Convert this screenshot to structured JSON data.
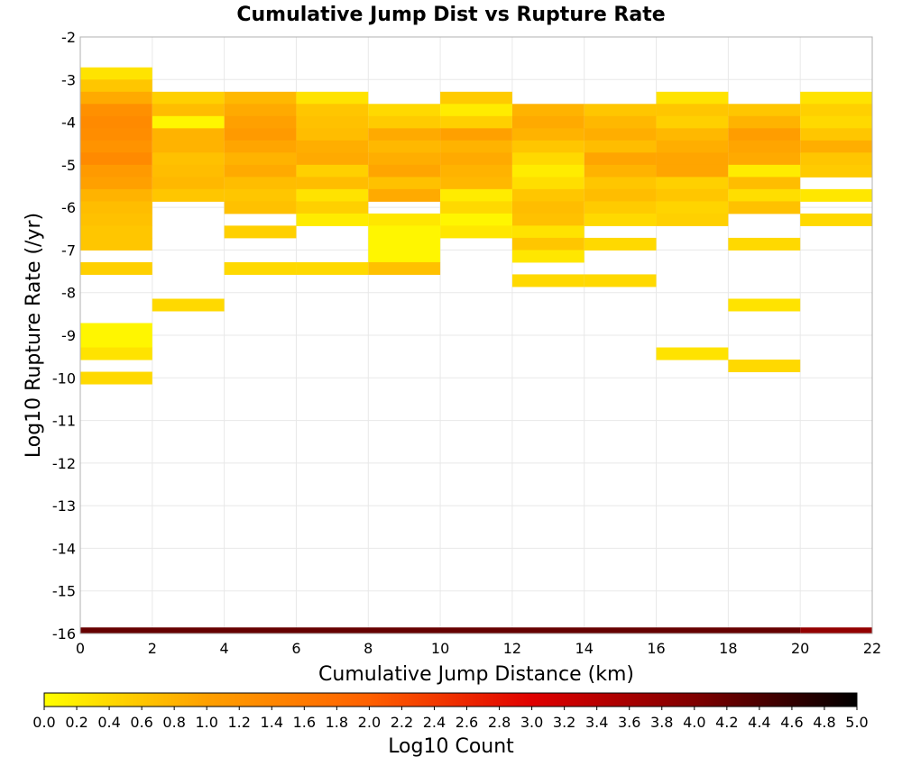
{
  "chart_data": {
    "type": "heatmap",
    "title": "Cumulative Jump Dist vs Rupture Rate",
    "xlabel": "Cumulative Jump Distance (km)",
    "ylabel": "Log10 Rupture Rate (/yr)",
    "xlim": [
      0,
      22
    ],
    "ylim": [
      -16,
      -2
    ],
    "x_ticks": [
      "0",
      "2",
      "4",
      "6",
      "8",
      "10",
      "12",
      "14",
      "16",
      "18",
      "20",
      "22"
    ],
    "y_ticks": [
      "-2",
      "-3",
      "-4",
      "-5",
      "-6",
      "-7",
      "-8",
      "-9",
      "-10",
      "-11",
      "-12",
      "-13",
      "-14",
      "-15",
      "-16"
    ],
    "grid": true,
    "x_bin_width": 2,
    "y_bin_height": 0.2857,
    "colorbar": {
      "label": "Log10 Count",
      "min": 0.0,
      "max": 5.0,
      "ticks": [
        "0.0",
        "0.2",
        "0.4",
        "0.6",
        "0.8",
        "1.0",
        "1.2",
        "1.4",
        "1.6",
        "1.8",
        "2.0",
        "2.2",
        "2.4",
        "2.6",
        "2.8",
        "3.0",
        "3.2",
        "3.4",
        "3.6",
        "3.8",
        "4.0",
        "4.2",
        "4.4",
        "4.6",
        "4.8",
        "5.0"
      ],
      "colors": [
        "#ffff00",
        "#ffa000",
        "#ff6000",
        "#e00000",
        "#800000",
        "#000000"
      ]
    },
    "columns": [
      {
        "x": 0,
        "cells": [
          {
            "y": -2.857,
            "v": 0.3
          },
          {
            "y": -3.143,
            "v": 0.6
          },
          {
            "y": -3.429,
            "v": 0.9
          },
          {
            "y": -3.714,
            "v": 1.25
          },
          {
            "y": -4.0,
            "v": 1.35
          },
          {
            "y": -4.286,
            "v": 1.3
          },
          {
            "y": -4.571,
            "v": 1.2
          },
          {
            "y": -4.857,
            "v": 1.35
          },
          {
            "y": -5.143,
            "v": 1.1
          },
          {
            "y": -5.429,
            "v": 1.0
          },
          {
            "y": -5.714,
            "v": 0.8
          },
          {
            "y": -6.0,
            "v": 0.7
          },
          {
            "y": -6.286,
            "v": 0.65
          },
          {
            "y": -6.571,
            "v": 0.6
          },
          {
            "y": -6.857,
            "v": 0.6
          },
          {
            "y": -7.429,
            "v": 0.5
          },
          {
            "y": -8.857,
            "v": 0.1
          },
          {
            "y": -9.143,
            "v": 0.1
          },
          {
            "y": -9.429,
            "v": 0.3
          },
          {
            "y": -10.0,
            "v": 0.4
          }
        ]
      },
      {
        "x": 2,
        "cells": [
          {
            "y": -3.429,
            "v": 0.5
          },
          {
            "y": -3.714,
            "v": 0.7
          },
          {
            "y": -4.0,
            "v": 0.1
          },
          {
            "y": -4.286,
            "v": 0.8
          },
          {
            "y": -4.571,
            "v": 0.8
          },
          {
            "y": -4.857,
            "v": 0.65
          },
          {
            "y": -5.143,
            "v": 0.7
          },
          {
            "y": -5.429,
            "v": 0.75
          },
          {
            "y": -5.714,
            "v": 0.6
          },
          {
            "y": -8.286,
            "v": 0.4
          }
        ]
      },
      {
        "x": 4,
        "cells": [
          {
            "y": -3.429,
            "v": 0.75
          },
          {
            "y": -3.714,
            "v": 0.9
          },
          {
            "y": -4.0,
            "v": 1.0
          },
          {
            "y": -4.286,
            "v": 1.1
          },
          {
            "y": -4.571,
            "v": 0.95
          },
          {
            "y": -4.857,
            "v": 0.8
          },
          {
            "y": -5.143,
            "v": 0.9
          },
          {
            "y": -5.429,
            "v": 0.7
          },
          {
            "y": -5.714,
            "v": 0.6
          },
          {
            "y": -6.0,
            "v": 0.65
          },
          {
            "y": -6.571,
            "v": 0.5
          },
          {
            "y": -7.429,
            "v": 0.4
          }
        ]
      },
      {
        "x": 6,
        "cells": [
          {
            "y": -3.429,
            "v": 0.3
          },
          {
            "y": -3.714,
            "v": 0.6
          },
          {
            "y": -4.0,
            "v": 0.65
          },
          {
            "y": -4.286,
            "v": 0.7
          },
          {
            "y": -4.571,
            "v": 0.85
          },
          {
            "y": -4.857,
            "v": 0.9
          },
          {
            "y": -5.143,
            "v": 0.5
          },
          {
            "y": -5.429,
            "v": 0.7
          },
          {
            "y": -5.714,
            "v": 0.3
          },
          {
            "y": -6.0,
            "v": 0.5
          },
          {
            "y": -6.286,
            "v": 0.2
          },
          {
            "y": -7.429,
            "v": 0.4
          }
        ]
      },
      {
        "x": 8,
        "cells": [
          {
            "y": -3.714,
            "v": 0.4
          },
          {
            "y": -4.0,
            "v": 0.55
          },
          {
            "y": -4.286,
            "v": 0.9
          },
          {
            "y": -4.571,
            "v": 0.75
          },
          {
            "y": -4.857,
            "v": 0.85
          },
          {
            "y": -5.143,
            "v": 0.95
          },
          {
            "y": -5.429,
            "v": 0.65
          },
          {
            "y": -5.714,
            "v": 0.9
          },
          {
            "y": -6.286,
            "v": 0.25
          },
          {
            "y": -6.571,
            "v": 0.1
          },
          {
            "y": -6.857,
            "v": 0.1
          },
          {
            "y": -7.143,
            "v": 0.1
          },
          {
            "y": -7.429,
            "v": 0.65
          }
        ]
      },
      {
        "x": 10,
        "cells": [
          {
            "y": -3.429,
            "v": 0.55
          },
          {
            "y": -3.714,
            "v": 0.2
          },
          {
            "y": -4.0,
            "v": 0.5
          },
          {
            "y": -4.286,
            "v": 1.0
          },
          {
            "y": -4.571,
            "v": 0.8
          },
          {
            "y": -4.857,
            "v": 0.9
          },
          {
            "y": -5.143,
            "v": 0.8
          },
          {
            "y": -5.429,
            "v": 0.75
          },
          {
            "y": -5.714,
            "v": 0.2
          },
          {
            "y": -6.0,
            "v": 0.4
          },
          {
            "y": -6.286,
            "v": 0.1
          },
          {
            "y": -6.571,
            "v": 0.25
          }
        ]
      },
      {
        "x": 12,
        "cells": [
          {
            "y": -3.714,
            "v": 0.8
          },
          {
            "y": -4.0,
            "v": 0.9
          },
          {
            "y": -4.286,
            "v": 0.8
          },
          {
            "y": -4.571,
            "v": 0.6
          },
          {
            "y": -4.857,
            "v": 0.4
          },
          {
            "y": -5.143,
            "v": 0.2
          },
          {
            "y": -5.429,
            "v": 0.35
          },
          {
            "y": -5.714,
            "v": 0.6
          },
          {
            "y": -6.0,
            "v": 0.7
          },
          {
            "y": -6.286,
            "v": 0.65
          },
          {
            "y": -6.571,
            "v": 0.3
          },
          {
            "y": -6.857,
            "v": 0.6
          },
          {
            "y": -7.143,
            "v": 0.25
          },
          {
            "y": -7.714,
            "v": 0.4
          }
        ]
      },
      {
        "x": 14,
        "cells": [
          {
            "y": -3.714,
            "v": 0.6
          },
          {
            "y": -4.0,
            "v": 0.75
          },
          {
            "y": -4.286,
            "v": 0.85
          },
          {
            "y": -4.571,
            "v": 0.7
          },
          {
            "y": -4.857,
            "v": 0.95
          },
          {
            "y": -5.143,
            "v": 0.8
          },
          {
            "y": -5.429,
            "v": 0.6
          },
          {
            "y": -5.714,
            "v": 0.7
          },
          {
            "y": -6.0,
            "v": 0.55
          },
          {
            "y": -6.286,
            "v": 0.4
          },
          {
            "y": -6.857,
            "v": 0.4
          },
          {
            "y": -7.714,
            "v": 0.4
          }
        ]
      },
      {
        "x": 16,
        "cells": [
          {
            "y": -3.429,
            "v": 0.3
          },
          {
            "y": -3.714,
            "v": 0.6
          },
          {
            "y": -4.0,
            "v": 0.5
          },
          {
            "y": -4.286,
            "v": 0.75
          },
          {
            "y": -4.571,
            "v": 0.85
          },
          {
            "y": -4.857,
            "v": 0.95
          },
          {
            "y": -5.143,
            "v": 0.95
          },
          {
            "y": -5.429,
            "v": 0.5
          },
          {
            "y": -5.714,
            "v": 0.6
          },
          {
            "y": -6.0,
            "v": 0.45
          },
          {
            "y": -6.286,
            "v": 0.5
          },
          {
            "y": -9.429,
            "v": 0.3
          }
        ]
      },
      {
        "x": 18,
        "cells": [
          {
            "y": -3.714,
            "v": 0.6
          },
          {
            "y": -4.0,
            "v": 0.8
          },
          {
            "y": -4.286,
            "v": 1.05
          },
          {
            "y": -4.571,
            "v": 0.95
          },
          {
            "y": -4.857,
            "v": 0.9
          },
          {
            "y": -5.143,
            "v": 0.2
          },
          {
            "y": -5.429,
            "v": 0.7
          },
          {
            "y": -5.714,
            "v": 0.35
          },
          {
            "y": -6.0,
            "v": 0.65
          },
          {
            "y": -6.857,
            "v": 0.4
          },
          {
            "y": -8.286,
            "v": 0.3
          },
          {
            "y": -9.714,
            "v": 0.4
          }
        ]
      },
      {
        "x": 20,
        "cells": [
          {
            "y": -3.429,
            "v": 0.3
          },
          {
            "y": -3.714,
            "v": 0.5
          },
          {
            "y": -4.0,
            "v": 0.4
          },
          {
            "y": -4.286,
            "v": 0.6
          },
          {
            "y": -4.571,
            "v": 0.85
          },
          {
            "y": -4.857,
            "v": 0.6
          },
          {
            "y": -5.143,
            "v": 0.55
          },
          {
            "y": -5.714,
            "v": 0.25
          },
          {
            "y": -6.286,
            "v": 0.4
          }
        ]
      }
    ],
    "bottom_row": {
      "y": -16,
      "segments": [
        {
          "x0": 0,
          "x1": 20,
          "v": 4.2
        },
        {
          "x0": 20,
          "x1": 22,
          "v": 3.8
        }
      ]
    }
  }
}
